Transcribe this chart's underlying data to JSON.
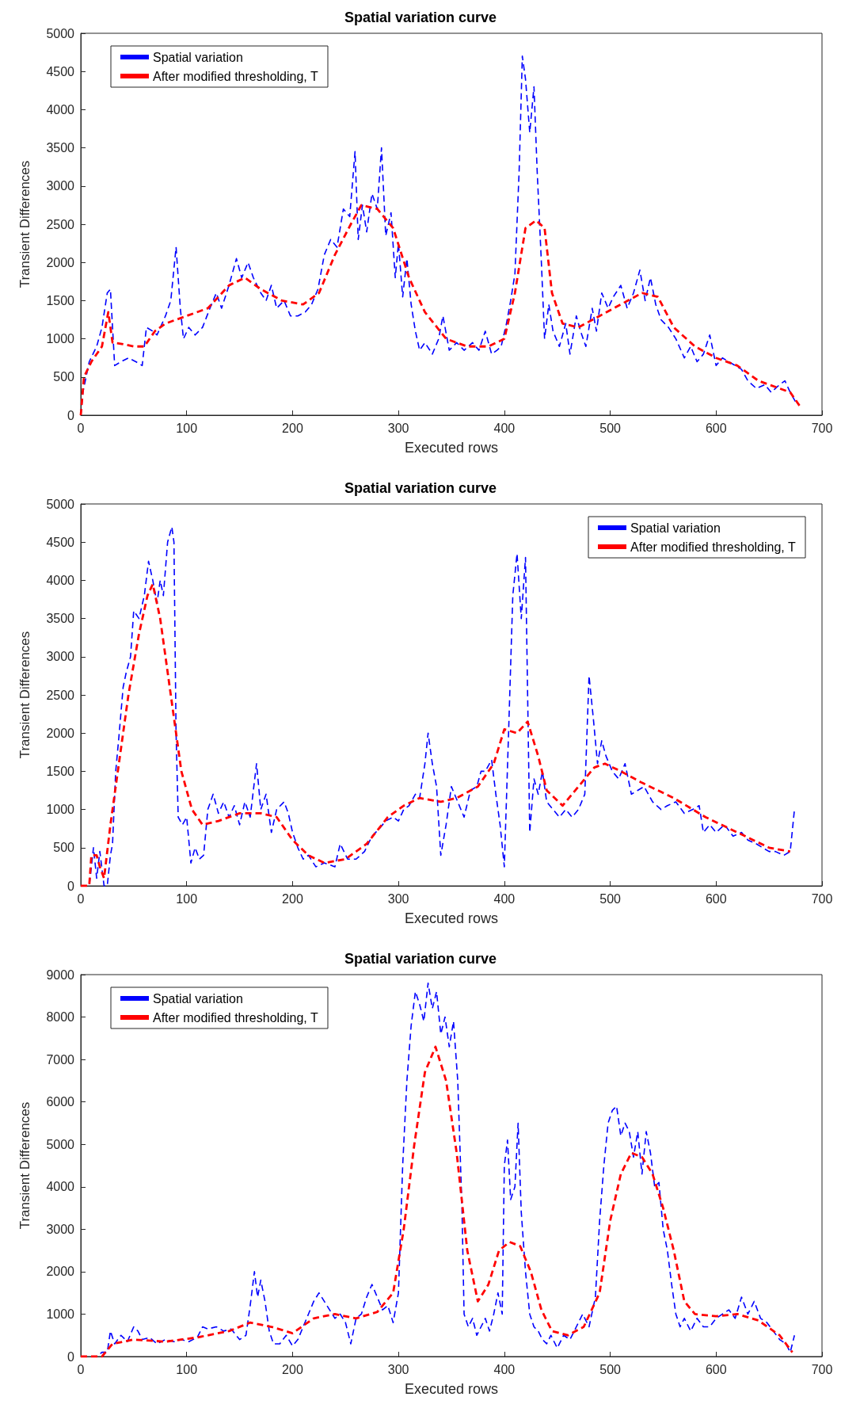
{
  "chart_data": [
    {
      "type": "line",
      "title": "Spatial variation curve",
      "xlabel": "Executed rows",
      "ylabel": "Transient Differences",
      "xlim": [
        0,
        700
      ],
      "xticks": [
        0,
        100,
        200,
        300,
        400,
        500,
        600,
        700
      ],
      "ylim": [
        0,
        5000
      ],
      "yticks": [
        0,
        500,
        1000,
        1500,
        2000,
        2500,
        3000,
        3500,
        4000,
        4500,
        5000
      ],
      "legend": "top left",
      "marker": "none",
      "line_style": "dashed",
      "series": [
        {
          "name": "Spatial variation",
          "color": "#0000ff",
          "x": [
            0,
            2,
            8,
            15,
            20,
            25,
            28,
            32,
            38,
            45,
            52,
            58,
            62,
            68,
            72,
            80,
            85,
            90,
            94,
            97,
            102,
            108,
            115,
            122,
            128,
            133,
            140,
            147,
            152,
            158,
            163,
            170,
            175,
            180,
            185,
            192,
            198,
            205,
            212,
            218,
            224,
            230,
            236,
            242,
            248,
            254,
            259,
            262,
            266,
            270,
            275,
            280,
            284,
            288,
            293,
            297,
            300,
            304,
            308,
            312,
            316,
            320,
            325,
            332,
            338,
            342,
            348,
            355,
            362,
            370,
            376,
            382,
            388,
            393,
            397,
            402,
            406,
            410,
            414,
            417,
            420,
            424,
            428,
            431,
            435,
            438,
            442,
            446,
            452,
            458,
            462,
            468,
            472,
            477,
            483,
            487,
            492,
            498,
            503,
            510,
            516,
            522,
            528,
            533,
            538,
            543,
            548,
            555,
            562,
            570,
            576,
            582,
            588,
            594,
            600,
            606,
            612,
            618,
            624,
            630,
            638,
            646,
            652,
            660,
            665,
            670,
            676
          ],
          "values": [
            0,
            300,
            700,
            900,
            1150,
            1600,
            1650,
            650,
            700,
            750,
            700,
            650,
            1150,
            1100,
            1050,
            1300,
            1500,
            2200,
            1400,
            1000,
            1150,
            1050,
            1150,
            1400,
            1600,
            1400,
            1700,
            2050,
            1800,
            2000,
            1800,
            1600,
            1500,
            1700,
            1400,
            1500,
            1300,
            1300,
            1350,
            1450,
            1650,
            2100,
            2300,
            2200,
            2700,
            2600,
            3450,
            2300,
            2750,
            2400,
            2900,
            2700,
            3500,
            2350,
            2650,
            1800,
            2250,
            1550,
            2050,
            1450,
            1100,
            850,
            950,
            800,
            1000,
            1300,
            850,
            950,
            850,
            950,
            850,
            1100,
            800,
            850,
            900,
            1200,
            1500,
            1850,
            3200,
            4700,
            4400,
            3700,
            4300,
            3200,
            2000,
            1000,
            1450,
            1100,
            900,
            1200,
            800,
            1300,
            1100,
            900,
            1400,
            1100,
            1600,
            1400,
            1550,
            1700,
            1400,
            1600,
            1900,
            1500,
            1800,
            1450,
            1250,
            1150,
            1000,
            750,
            900,
            700,
            800,
            1050,
            650,
            750,
            700,
            650,
            600,
            450,
            350,
            400,
            300,
            400,
            450,
            300,
            150
          ]
        },
        {
          "name": "After modified thresholding, T",
          "color": "#ff0000",
          "x": [
            0,
            3,
            10,
            20,
            26,
            30,
            40,
            50,
            60,
            70,
            80,
            100,
            120,
            140,
            155,
            170,
            190,
            210,
            225,
            240,
            255,
            265,
            280,
            295,
            310,
            325,
            345,
            365,
            385,
            400,
            410,
            420,
            430,
            438,
            445,
            455,
            470,
            490,
            510,
            530,
            545,
            560,
            580,
            600,
            620,
            640,
            660,
            670,
            680
          ],
          "values": [
            0,
            500,
            700,
            900,
            1350,
            950,
            930,
            900,
            900,
            1100,
            1200,
            1300,
            1400,
            1700,
            1800,
            1650,
            1500,
            1450,
            1600,
            2100,
            2500,
            2750,
            2700,
            2450,
            1800,
            1350,
            1000,
            900,
            900,
            1000,
            1600,
            2450,
            2550,
            2450,
            1600,
            1200,
            1150,
            1300,
            1450,
            1600,
            1550,
            1150,
            900,
            750,
            650,
            450,
            350,
            300,
            100
          ]
        }
      ]
    },
    {
      "type": "line",
      "title": "Spatial variation curve",
      "xlabel": "Executed rows",
      "ylabel": "Transient Differences",
      "xlim": [
        0,
        700
      ],
      "xticks": [
        0,
        100,
        200,
        300,
        400,
        500,
        600,
        700
      ],
      "ylim": [
        0,
        5000
      ],
      "yticks": [
        0,
        500,
        1000,
        1500,
        2000,
        2500,
        3000,
        3500,
        4000,
        4500,
        5000
      ],
      "legend": "top right",
      "marker": "none",
      "line_style": "dashed",
      "series": [
        {
          "name": "Spatial variation",
          "color": "#0000ff",
          "x": [
            0,
            8,
            12,
            15,
            18,
            22,
            25,
            28,
            30,
            33,
            36,
            40,
            43,
            47,
            50,
            55,
            60,
            64,
            68,
            72,
            75,
            78,
            82,
            86,
            88,
            90,
            92,
            96,
            100,
            104,
            108,
            112,
            116,
            120,
            125,
            130,
            135,
            140,
            145,
            150,
            155,
            160,
            166,
            170,
            175,
            180,
            185,
            192,
            196,
            200,
            205,
            210,
            215,
            222,
            230,
            240,
            245,
            252,
            260,
            268,
            275,
            282,
            288,
            295,
            300,
            305,
            310,
            316,
            320,
            325,
            328,
            332,
            336,
            340,
            345,
            350,
            356,
            362,
            368,
            374,
            378,
            382,
            388,
            392,
            396,
            400,
            404,
            408,
            412,
            416,
            420,
            424,
            428,
            432,
            436,
            440,
            446,
            452,
            458,
            464,
            470,
            476,
            480,
            484,
            488,
            492,
            496,
            502,
            508,
            514,
            520,
            526,
            532,
            540,
            548,
            554,
            562,
            570,
            578,
            584,
            588,
            594,
            600,
            608,
            616,
            624,
            630,
            638,
            644,
            650,
            656,
            664,
            670,
            674
          ],
          "values": [
            0,
            0,
            500,
            100,
            450,
            0,
            0,
            400,
            550,
            1500,
            1950,
            2600,
            2800,
            3000,
            3600,
            3500,
            3800,
            4250,
            4000,
            3700,
            4000,
            3800,
            4500,
            4700,
            4500,
            2000,
            900,
            800,
            900,
            300,
            500,
            350,
            400,
            1000,
            1200,
            950,
            1100,
            900,
            1050,
            800,
            1100,
            900,
            1600,
            1000,
            1200,
            700,
            1000,
            1100,
            950,
            700,
            500,
            350,
            400,
            250,
            300,
            250,
            550,
            350,
            350,
            450,
            650,
            750,
            850,
            900,
            850,
            1000,
            1050,
            1200,
            1150,
            1600,
            2000,
            1600,
            1300,
            400,
            800,
            1300,
            1100,
            900,
            1250,
            1300,
            1500,
            1500,
            1650,
            1200,
            800,
            250,
            2000,
            3800,
            4350,
            3500,
            4300,
            700,
            1400,
            1200,
            1500,
            1100,
            1000,
            900,
            1000,
            900,
            1000,
            1200,
            2750,
            2200,
            1600,
            1900,
            1700,
            1500,
            1400,
            1600,
            1200,
            1250,
            1300,
            1100,
            1000,
            1050,
            1100,
            950,
            1000,
            1050,
            700,
            800,
            700,
            800,
            650,
            700,
            600,
            550,
            500,
            450,
            450,
            400,
            450,
            1000
          ]
        },
        {
          "name": "After modified thresholding, T",
          "color": "#ff0000",
          "x": [
            0,
            8,
            10,
            15,
            18,
            22,
            28,
            35,
            45,
            55,
            63,
            68,
            75,
            85,
            95,
            105,
            115,
            130,
            150,
            170,
            185,
            200,
            215,
            230,
            250,
            270,
            290,
            305,
            320,
            340,
            355,
            375,
            390,
            400,
            412,
            422,
            432,
            440,
            455,
            470,
            485,
            495,
            510,
            530,
            560,
            590,
            620,
            650,
            670
          ],
          "values": [
            0,
            0,
            400,
            400,
            250,
            100,
            800,
            1500,
            2500,
            3300,
            3800,
            3950,
            3500,
            2500,
            1500,
            1000,
            800,
            850,
            950,
            950,
            900,
            600,
            400,
            300,
            350,
            550,
            900,
            1050,
            1150,
            1100,
            1150,
            1300,
            1600,
            2050,
            2000,
            2150,
            1700,
            1250,
            1050,
            1300,
            1550,
            1600,
            1500,
            1350,
            1150,
            900,
            700,
            500,
            450
          ]
        }
      ]
    },
    {
      "type": "line",
      "title": "Spatial variation curve",
      "xlabel": "Executed rows",
      "ylabel": "Transient Differences",
      "xlim": [
        0,
        700
      ],
      "xticks": [
        0,
        100,
        200,
        300,
        400,
        500,
        600,
        700
      ],
      "ylim": [
        0,
        9000
      ],
      "yticks": [
        0,
        1000,
        2000,
        3000,
        4000,
        5000,
        6000,
        7000,
        8000,
        9000
      ],
      "legend": "top left",
      "marker": "none",
      "line_style": "dashed",
      "series": [
        {
          "name": "Spatial variation",
          "color": "#0000ff",
          "x": [
            0,
            15,
            20,
            25,
            28,
            32,
            38,
            44,
            50,
            54,
            58,
            65,
            72,
            80,
            88,
            95,
            102,
            110,
            115,
            120,
            128,
            135,
            142,
            150,
            156,
            160,
            164,
            167,
            170,
            174,
            178,
            182,
            188,
            194,
            200,
            205,
            210,
            215,
            220,
            225,
            230,
            235,
            240,
            245,
            250,
            255,
            260,
            265,
            270,
            275,
            280,
            285,
            290,
            295,
            300,
            304,
            308,
            312,
            316,
            320,
            324,
            328,
            332,
            336,
            340,
            344,
            348,
            352,
            356,
            360,
            362,
            366,
            370,
            374,
            378,
            382,
            386,
            390,
            394,
            398,
            400,
            403,
            406,
            410,
            413,
            416,
            420,
            424,
            428,
            432,
            436,
            440,
            444,
            450,
            456,
            462,
            468,
            474,
            480,
            486,
            490,
            494,
            498,
            502,
            506,
            510,
            514,
            518,
            522,
            526,
            530,
            534,
            538,
            542,
            546,
            550,
            554,
            558,
            562,
            566,
            570,
            576,
            582,
            588,
            594,
            600,
            606,
            612,
            618,
            624,
            630,
            636,
            642,
            648,
            654,
            660,
            666,
            670,
            674
          ],
          "values": [
            0,
            0,
            100,
            100,
            600,
            300,
            500,
            350,
            700,
            600,
            400,
            450,
            300,
            400,
            350,
            400,
            350,
            450,
            700,
            650,
            700,
            600,
            650,
            400,
            500,
            1200,
            2000,
            1400,
            1800,
            1300,
            600,
            300,
            300,
            500,
            250,
            400,
            700,
            1000,
            1300,
            1500,
            1300,
            1100,
            900,
            1000,
            800,
            300,
            900,
            1000,
            1400,
            1700,
            1400,
            1100,
            1200,
            800,
            1500,
            4500,
            6500,
            7800,
            8600,
            8300,
            7900,
            8800,
            8200,
            8600,
            7600,
            8000,
            7300,
            7900,
            6500,
            3500,
            1000,
            700,
            900,
            500,
            700,
            900,
            600,
            1000,
            1500,
            1000,
            4500,
            5100,
            3700,
            4000,
            5500,
            3400,
            2000,
            1000,
            700,
            600,
            400,
            300,
            500,
            200,
            500,
            400,
            700,
            1000,
            700,
            1400,
            3200,
            4500,
            5500,
            5800,
            5900,
            5200,
            5500,
            5300,
            4700,
            5300,
            4300,
            5300,
            4800,
            4000,
            4100,
            3000,
            2500,
            1700,
            1000,
            700,
            900,
            600,
            900,
            700,
            700,
            900,
            1000,
            1100,
            900,
            1400,
            1000,
            1300,
            900,
            800,
            600,
            400,
            300,
            100,
            500
          ]
        },
        {
          "name": "After modified thresholding, T",
          "color": "#ff0000",
          "x": [
            0,
            20,
            30,
            50,
            80,
            110,
            140,
            160,
            180,
            200,
            220,
            240,
            260,
            280,
            295,
            305,
            315,
            325,
            335,
            345,
            355,
            365,
            375,
            385,
            395,
            405,
            415,
            425,
            435,
            445,
            460,
            475,
            490,
            500,
            510,
            520,
            530,
            540,
            550,
            560,
            570,
            580,
            600,
            620,
            640,
            660,
            672
          ],
          "values": [
            0,
            0,
            300,
            400,
            350,
            450,
            600,
            800,
            700,
            550,
            900,
            1000,
            900,
            1050,
            1500,
            3000,
            5000,
            6700,
            7300,
            6500,
            4800,
            2500,
            1300,
            1700,
            2500,
            2700,
            2600,
            2000,
            1100,
            600,
            500,
            700,
            1500,
            3200,
            4300,
            4800,
            4700,
            4300,
            3500,
            2500,
            1300,
            1000,
            950,
            1000,
            850,
            500,
            100
          ]
        }
      ]
    }
  ]
}
